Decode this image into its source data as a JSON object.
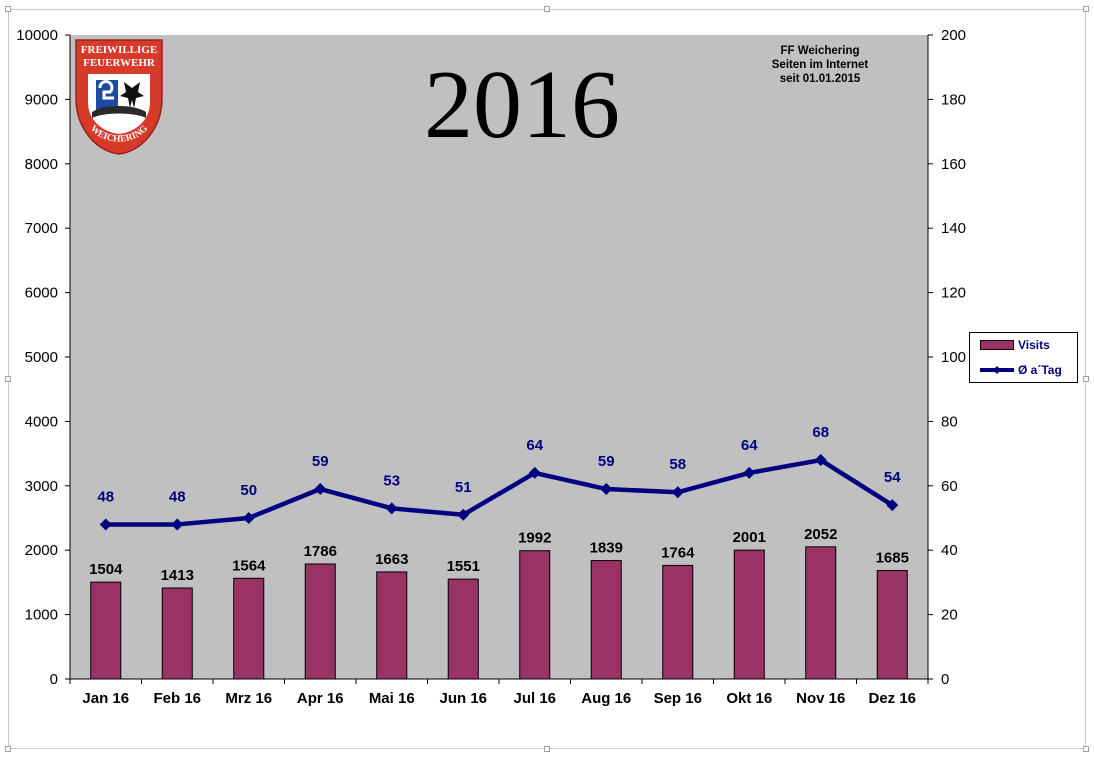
{
  "chart_data": {
    "type": "bar",
    "title": "2016",
    "subtitle_lines": [
      "FF Weichering",
      "Seiten im Internet",
      "seit 01.01.2015"
    ],
    "categories": [
      "Jan 16",
      "Feb 16",
      "Mrz 16",
      "Apr 16",
      "Mai 16",
      "Jun 16",
      "Jul 16",
      "Aug 16",
      "Sep 16",
      "Okt 16",
      "Nov 16",
      "Dez 16"
    ],
    "series": [
      {
        "name": "Visits",
        "type": "bar",
        "axis": "left",
        "color": "#993366",
        "values": [
          1504,
          1413,
          1564,
          1786,
          1663,
          1551,
          1992,
          1839,
          1764,
          2001,
          2052,
          1685
        ]
      },
      {
        "name": "Ø a´Tag",
        "type": "line",
        "axis": "right",
        "color": "#000080",
        "values": [
          48,
          48,
          50,
          59,
          53,
          51,
          64,
          59,
          58,
          64,
          68,
          54
        ]
      }
    ],
    "y_left": {
      "min": 0,
      "max": 10000,
      "ticks": [
        0,
        1000,
        2000,
        3000,
        4000,
        5000,
        6000,
        7000,
        8000,
        9000,
        10000
      ]
    },
    "y_right": {
      "min": 0,
      "max": 200,
      "ticks": [
        0,
        20,
        40,
        60,
        80,
        100,
        120,
        140,
        160,
        180,
        200
      ]
    },
    "plot_background": "#c0c0c0",
    "grid": false,
    "legend_position": "right"
  },
  "logo": {
    "line1": "FREIWILLIGE",
    "line2": "FEUERWEHR",
    "line3": "WEICHERING",
    "color": "#d63a2b"
  },
  "legend": {
    "visits_label": "Visits",
    "avg_label": "Ø a´Tag"
  }
}
